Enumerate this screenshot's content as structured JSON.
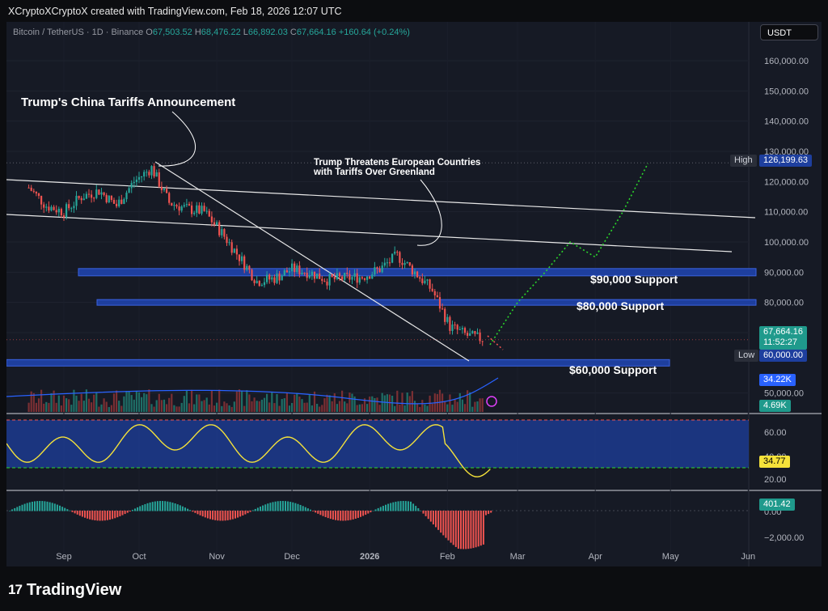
{
  "header": {
    "credit": "XCryptoXCryptoX created with TradingView.com, Feb 18, 2026 12:07 UTC"
  },
  "legend": {
    "symbol": "Bitcoin / TetherUS · 1D · Binance",
    "o_label": "O",
    "o": "67,503.52",
    "h_label": "H",
    "h": "68,476.22",
    "l_label": "L",
    "l": "66,892.03",
    "c_label": "C",
    "c": "67,664.16",
    "change": "+160.64 (+0.24%)"
  },
  "currency_button": "USDT",
  "annotations": {
    "china_tariffs": "Trump's China Tariffs Announcement",
    "greenland_line1": "Trump Threatens European Countries",
    "greenland_line2": "with Tariffs Over Greenland",
    "support_90k": "$90,000 Support",
    "support_80k": "$80,000 Support",
    "support_60k": "$60,000 Support"
  },
  "tags": {
    "high_label": "High",
    "high_value": "126,199.63",
    "low_label": "Low",
    "low_value": "60,000.00",
    "last_price": "67,664.16",
    "countdown": "11:52:27",
    "volume_ma": "34.22K",
    "volume": "4.69K",
    "rsi": "34.77",
    "macd": "401.42"
  },
  "colors": {
    "up": "#26a69a",
    "down": "#ef5350",
    "zone": "#1e3f9e",
    "rsi": "#f5e23a",
    "volma": "#2962ff"
  },
  "chart_data": {
    "type": "line",
    "title": "Bitcoin / TetherUS · 1D · Binance",
    "price_axis": {
      "ticks": [
        "160,000.00",
        "150,000.00",
        "140,000.00",
        "130,000.00",
        "120,000.00",
        "110,000.00",
        "100,000.00",
        "90,000.00",
        "80,000.00",
        "70,000.00",
        "50,000.00"
      ],
      "ylim": [
        40000,
        165000
      ]
    },
    "x_axis": {
      "labels": [
        "Sep",
        "Oct",
        "Nov",
        "Dec",
        "2026",
        "Feb",
        "Mar",
        "Apr",
        "May",
        "Jun"
      ]
    },
    "series": [
      {
        "name": "",
        "x": [
          "2025-08-18",
          "2025-08-25",
          "2025-09-01",
          "2025-09-08",
          "2025-09-15",
          "2025-09-22",
          "2025-09-29",
          "2025-10-06",
          "2025-10-13",
          "2025-10-20",
          "2025-10-27",
          "2025-11-03",
          "2025-11-10",
          "2025-11-17",
          "2025-11-24",
          "2025-12-01",
          "2025-12-08",
          "2025-12-15",
          "2025-12-22",
          "2025-12-29",
          "2026-01-05",
          "2026-01-12",
          "2026-01-19",
          "2026-01-26",
          "2026-02-02",
          "2026-02-09",
          "2026-02-16"
        ],
        "values": [
          118000,
          112000,
          110000,
          115000,
          117000,
          112000,
          120000,
          124500,
          113000,
          111000,
          110000,
          103000,
          95000,
          87000,
          88000,
          91000,
          90000,
          87500,
          88000,
          88500,
          91000,
          95500,
          90000,
          84000,
          72000,
          69000,
          67664
        ]
      }
    ],
    "projection": {
      "x": [
        "2026-02-18",
        "2026-03-01",
        "2026-03-12",
        "2026-03-22",
        "2026-04-01",
        "2026-04-12",
        "2026-04-22"
      ],
      "values": [
        66000,
        80000,
        90000,
        100000,
        95000,
        110000,
        126000
      ]
    },
    "support_levels": [
      90000,
      80000,
      60000
    ],
    "rsi_axis": {
      "ticks": [
        "60.00",
        "40.00",
        "20.00"
      ]
    },
    "macd_axis": {
      "ticks": [
        "0.00",
        "−2,000.00"
      ]
    },
    "grid": true
  }
}
